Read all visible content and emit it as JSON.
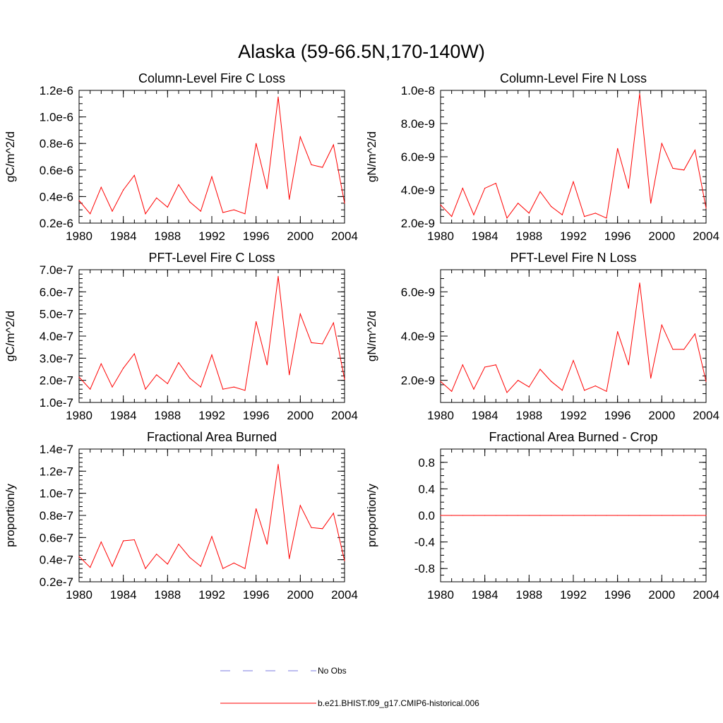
{
  "figure_title": "Alaska (59-66.5N,170-140W)",
  "legend": {
    "entries": [
      {
        "label": "No Obs",
        "color": "#7b7be0",
        "style": "dashed"
      },
      {
        "label": "b.e21.BHIST.f09_g17.CMIP6-historical.006",
        "color": "#ff0000",
        "style": "solid"
      }
    ]
  },
  "colors": {
    "series": "#ff0000",
    "axis": "#000000",
    "obs": "#7b7be0"
  },
  "chart_data": [
    {
      "type": "line",
      "title": "Column-Level Fire C Loss",
      "xlabel": "",
      "ylabel": "gC/m^2/d",
      "xlim": [
        1980,
        2004
      ],
      "ylim": [
        2e-07,
        1.2e-06
      ],
      "xticks": [
        1980,
        1984,
        1988,
        1992,
        1996,
        2000,
        2004
      ],
      "xtick_labels": [
        "1980",
        "1984",
        "1988",
        "1992",
        "1996",
        "2000",
        "2004"
      ],
      "yticks": [
        2e-07,
        4e-07,
        6e-07,
        8e-07,
        1e-06,
        1.2e-06
      ],
      "ytick_labels": [
        "0.2e-6",
        "0.4e-6",
        "0.6e-6",
        "0.8e-6",
        "1.0e-6",
        "1.2e-6"
      ],
      "yminor_step": 5e-08,
      "x": [
        1980,
        1981,
        1982,
        1983,
        1984,
        1985,
        1986,
        1987,
        1988,
        1989,
        1990,
        1991,
        1992,
        1993,
        1994,
        1995,
        1996,
        1997,
        1998,
        1999,
        2000,
        2001,
        2002,
        2003,
        2004
      ],
      "series": [
        {
          "name": "b.e21.BHIST.f09_g17.CMIP6-historical.006",
          "values": [
            3.7e-07,
            2.7e-07,
            4.7e-07,
            2.9e-07,
            4.5e-07,
            5.6e-07,
            2.7e-07,
            3.9e-07,
            3.2e-07,
            4.9e-07,
            3.6e-07,
            2.9e-07,
            5.5e-07,
            2.8e-07,
            3e-07,
            2.7e-07,
            8e-07,
            4.6e-07,
            1.15e-06,
            3.8e-07,
            8.5e-07,
            6.4e-07,
            6.2e-07,
            7.9e-07,
            3.5e-07
          ]
        }
      ]
    },
    {
      "type": "line",
      "title": "Column-Level Fire N Loss",
      "xlabel": "",
      "ylabel": "gN/m^2/d",
      "xlim": [
        1980,
        2004
      ],
      "ylim": [
        2e-09,
        1e-08
      ],
      "xticks": [
        1980,
        1984,
        1988,
        1992,
        1996,
        2000,
        2004
      ],
      "xtick_labels": [
        "1980",
        "1984",
        "1988",
        "1992",
        "1996",
        "2000",
        "2004"
      ],
      "yticks": [
        2e-09,
        4e-09,
        6e-09,
        8e-09,
        1e-08
      ],
      "ytick_labels": [
        "2.0e-9",
        "4.0e-9",
        "6.0e-9",
        "8.0e-9",
        "1.0e-8"
      ],
      "yminor_step": 4e-10,
      "x": [
        1980,
        1981,
        1982,
        1983,
        1984,
        1985,
        1986,
        1987,
        1988,
        1989,
        1990,
        1991,
        1992,
        1993,
        1994,
        1995,
        1996,
        1997,
        1998,
        1999,
        2000,
        2001,
        2002,
        2003,
        2004
      ],
      "series": [
        {
          "name": "b.e21.BHIST.f09_g17.CMIP6-historical.006",
          "values": [
            3.1e-09,
            2.4e-09,
            4.1e-09,
            2.5e-09,
            4.1e-09,
            4.4e-09,
            2.3e-09,
            3.2e-09,
            2.6e-09,
            3.9e-09,
            3e-09,
            2.5e-09,
            4.5e-09,
            2.4e-09,
            2.6e-09,
            2.3e-09,
            6.5e-09,
            4.1e-09,
            9.8e-09,
            3.2e-09,
            6.8e-09,
            5.3e-09,
            5.2e-09,
            6.4e-09,
            2.9e-09
          ]
        }
      ]
    },
    {
      "type": "line",
      "title": "PFT-Level Fire C Loss",
      "xlabel": "",
      "ylabel": "gC/m^2/d",
      "xlim": [
        1980,
        2004
      ],
      "ylim": [
        1e-07,
        7e-07
      ],
      "xticks": [
        1980,
        1984,
        1988,
        1992,
        1996,
        2000,
        2004
      ],
      "xtick_labels": [
        "1980",
        "1984",
        "1988",
        "1992",
        "1996",
        "2000",
        "2004"
      ],
      "yticks": [
        1e-07,
        2e-07,
        3e-07,
        4e-07,
        5e-07,
        6e-07,
        7e-07
      ],
      "ytick_labels": [
        "1.0e-7",
        "2.0e-7",
        "3.0e-7",
        "4.0e-7",
        "5.0e-7",
        "6.0e-7",
        "7.0e-7"
      ],
      "yminor_step": 2e-08,
      "x": [
        1980,
        1981,
        1982,
        1983,
        1984,
        1985,
        1986,
        1987,
        1988,
        1989,
        1990,
        1991,
        1992,
        1993,
        1994,
        1995,
        1996,
        1997,
        1998,
        1999,
        2000,
        2001,
        2002,
        2003,
        2004
      ],
      "series": [
        {
          "name": "b.e21.BHIST.f09_g17.CMIP6-historical.006",
          "values": [
            2.15e-07,
            1.6e-07,
            2.75e-07,
            1.7e-07,
            2.55e-07,
            3.2e-07,
            1.6e-07,
            2.25e-07,
            1.85e-07,
            2.8e-07,
            2.1e-07,
            1.7e-07,
            3.15e-07,
            1.6e-07,
            1.7e-07,
            1.55e-07,
            4.65e-07,
            2.7e-07,
            6.7e-07,
            2.25e-07,
            5e-07,
            3.7e-07,
            3.65e-07,
            4.6e-07,
            2.05e-07
          ]
        }
      ]
    },
    {
      "type": "line",
      "title": "PFT-Level Fire N Loss",
      "xlabel": "",
      "ylabel": "gN/m^2/d",
      "xlim": [
        1980,
        2004
      ],
      "ylim": [
        1e-09,
        7e-09
      ],
      "xticks": [
        1980,
        1984,
        1988,
        1992,
        1996,
        2000,
        2004
      ],
      "xtick_labels": [
        "1980",
        "1984",
        "1988",
        "1992",
        "1996",
        "2000",
        "2004"
      ],
      "yticks": [
        2e-09,
        4e-09,
        6e-09
      ],
      "ytick_labels": [
        "2.0e-9",
        "4.0e-9",
        "6.0e-9"
      ],
      "yminor_step": 4e-10,
      "x": [
        1980,
        1981,
        1982,
        1983,
        1984,
        1985,
        1986,
        1987,
        1988,
        1989,
        1990,
        1991,
        1992,
        1993,
        1994,
        1995,
        1996,
        1997,
        1998,
        1999,
        2000,
        2001,
        2002,
        2003,
        2004
      ],
      "series": [
        {
          "name": "b.e21.BHIST.f09_g17.CMIP6-historical.006",
          "values": [
            1.95e-09,
            1.5e-09,
            2.7e-09,
            1.6e-09,
            2.6e-09,
            2.7e-09,
            1.45e-09,
            2e-09,
            1.7e-09,
            2.5e-09,
            1.95e-09,
            1.55e-09,
            2.9e-09,
            1.55e-09,
            1.75e-09,
            1.5e-09,
            4.2e-09,
            2.7e-09,
            6.4e-09,
            2.1e-09,
            4.5e-09,
            3.4e-09,
            3.4e-09,
            4.1e-09,
            1.95e-09
          ]
        }
      ]
    },
    {
      "type": "line",
      "title": "Fractional Area Burned",
      "xlabel": "",
      "ylabel": "proportion/y",
      "xlim": [
        1980,
        2004
      ],
      "ylim": [
        2e-08,
        1.4e-07
      ],
      "xticks": [
        1980,
        1984,
        1988,
        1992,
        1996,
        2000,
        2004
      ],
      "xtick_labels": [
        "1980",
        "1984",
        "1988",
        "1992",
        "1996",
        "2000",
        "2004"
      ],
      "yticks": [
        2e-08,
        4e-08,
        6e-08,
        8e-08,
        1e-07,
        1.2e-07,
        1.4e-07
      ],
      "ytick_labels": [
        "0.2e-7",
        "0.4e-7",
        "0.6e-7",
        "0.8e-7",
        "1.0e-7",
        "1.2e-7",
        "1.4e-7"
      ],
      "yminor_step": 4e-09,
      "x": [
        1980,
        1981,
        1982,
        1983,
        1984,
        1985,
        1986,
        1987,
        1988,
        1989,
        1990,
        1991,
        1992,
        1993,
        1994,
        1995,
        1996,
        1997,
        1998,
        1999,
        2000,
        2001,
        2002,
        2003,
        2004
      ],
      "series": [
        {
          "name": "b.e21.BHIST.f09_g17.CMIP6-historical.006",
          "values": [
            4.3e-08,
            3.3e-08,
            5.6e-08,
            3.4e-08,
            5.7e-08,
            5.8e-08,
            3.2e-08,
            4.5e-08,
            3.6e-08,
            5.4e-08,
            4.2e-08,
            3.4e-08,
            6.1e-08,
            3.2e-08,
            3.7e-08,
            3.2e-08,
            8.6e-08,
            5.4e-08,
            1.26e-07,
            4.1e-08,
            8.9e-08,
            6.9e-08,
            6.8e-08,
            8.2e-08,
            3.9e-08
          ]
        }
      ]
    },
    {
      "type": "line",
      "title": "Fractional Area Burned - Crop",
      "xlabel": "",
      "ylabel": "proportion/y",
      "xlim": [
        1980,
        2004
      ],
      "ylim": [
        -1.0,
        1.0
      ],
      "xticks": [
        1980,
        1984,
        1988,
        1992,
        1996,
        2000,
        2004
      ],
      "xtick_labels": [
        "1980",
        "1984",
        "1988",
        "1992",
        "1996",
        "2000",
        "2004"
      ],
      "yticks": [
        -0.8,
        -0.4,
        0.0,
        0.4,
        0.8
      ],
      "ytick_labels": [
        "-0.8",
        "-0.4",
        "0.0",
        "0.4",
        "0.8"
      ],
      "yminor_step": 0.1,
      "x": [
        1980,
        1981,
        1982,
        1983,
        1984,
        1985,
        1986,
        1987,
        1988,
        1989,
        1990,
        1991,
        1992,
        1993,
        1994,
        1995,
        1996,
        1997,
        1998,
        1999,
        2000,
        2001,
        2002,
        2003,
        2004
      ],
      "series": [
        {
          "name": "b.e21.BHIST.f09_g17.CMIP6-historical.006",
          "values": [
            0,
            0,
            0,
            0,
            0,
            0,
            0,
            0,
            0,
            0,
            0,
            0,
            0,
            0,
            0,
            0,
            0,
            0,
            0,
            0,
            0,
            0,
            0,
            0,
            0
          ]
        }
      ]
    }
  ]
}
